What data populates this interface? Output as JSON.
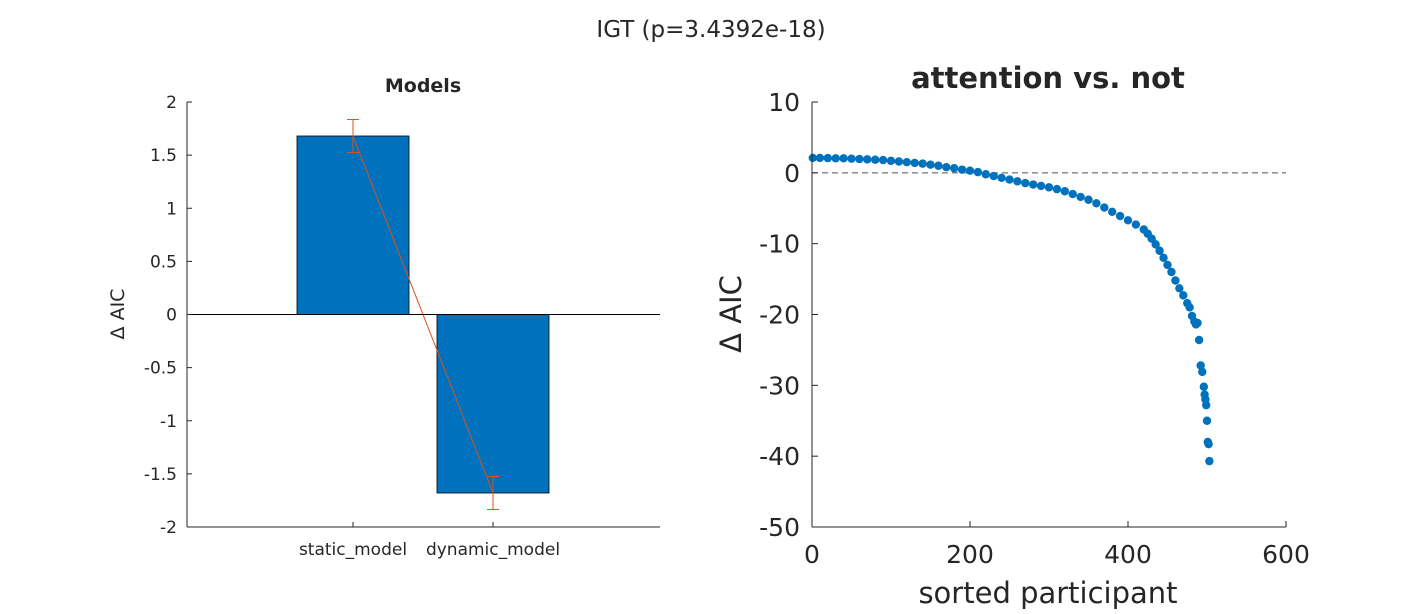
{
  "figure": {
    "title": "IGT (p=3.4392e-18)"
  },
  "chart_data": [
    {
      "type": "bar",
      "title": "Models",
      "xlabel": "",
      "ylabel": "Δ AIC",
      "categories": [
        "static_model",
        "dynamic_model"
      ],
      "values": [
        1.68,
        -1.68
      ],
      "error": [
        0.155,
        0.155
      ],
      "ylim": [
        -2,
        2
      ],
      "yticks": [
        "2",
        "1.5",
        "1",
        "0.5",
        "0",
        "-0.5",
        "-1",
        "-1.5",
        "-2"
      ],
      "ytick_values": [
        2,
        1.5,
        1,
        0.5,
        0,
        -0.5,
        -1,
        -1.5,
        -2
      ],
      "bar_color": "#0072BD",
      "error_color": "#D95319",
      "grid": false
    },
    {
      "type": "scatter",
      "title": "attention vs. not",
      "xlabel": "sorted participant",
      "ylabel": "Δ AIC",
      "xlim": [
        0,
        600
      ],
      "ylim": [
        -50,
        10
      ],
      "xticks": [
        "0",
        "200",
        "400",
        "600"
      ],
      "xtick_values": [
        0,
        200,
        400,
        600
      ],
      "yticks": [
        "10",
        "0",
        "-10",
        "-20",
        "-30",
        "-40",
        "-50"
      ],
      "ytick_values": [
        10,
        0,
        -10,
        -20,
        -30,
        -40,
        -50
      ],
      "reference_line": 0,
      "marker_color": "#0072BD",
      "grid": false,
      "series": [
        {
          "x": [
            1,
            10,
            20,
            30,
            40,
            50,
            60,
            70,
            80,
            90,
            100,
            110,
            120,
            130,
            140,
            150,
            160,
            170,
            180,
            190,
            200,
            210,
            220,
            230,
            240,
            250,
            260,
            270,
            280,
            290,
            300,
            310,
            320,
            330,
            340,
            350,
            360,
            370,
            380,
            390,
            400,
            410,
            420,
            425,
            430,
            435,
            440,
            445,
            450,
            455,
            460,
            465,
            470,
            475,
            478,
            481,
            484,
            486,
            488,
            490,
            492,
            494,
            496,
            497,
            498,
            499,
            500,
            501,
            502,
            503
          ],
          "y": [
            2.1,
            2.1,
            2.08,
            2.05,
            2.05,
            2.0,
            1.95,
            1.9,
            1.85,
            1.8,
            1.7,
            1.6,
            1.5,
            1.4,
            1.3,
            1.15,
            1.0,
            0.8,
            0.65,
            0.45,
            0.3,
            0.1,
            -0.2,
            -0.45,
            -0.7,
            -0.95,
            -1.2,
            -1.45,
            -1.65,
            -1.85,
            -2.05,
            -2.3,
            -2.6,
            -3.0,
            -3.4,
            -3.8,
            -4.3,
            -4.9,
            -5.5,
            -6.1,
            -6.7,
            -7.3,
            -8.0,
            -8.6,
            -9.3,
            -10.1,
            -11.0,
            -12.0,
            -13.0,
            -14.0,
            -15.2,
            -16.3,
            -17.3,
            -18.4,
            -19.0,
            -20.2,
            -21.0,
            -21.4,
            -21.2,
            -23.6,
            -27.2,
            -28.1,
            -30.2,
            -31.3,
            -32.0,
            -32.8,
            -35.0,
            -38.0,
            -38.3,
            -40.7
          ]
        }
      ]
    }
  ]
}
